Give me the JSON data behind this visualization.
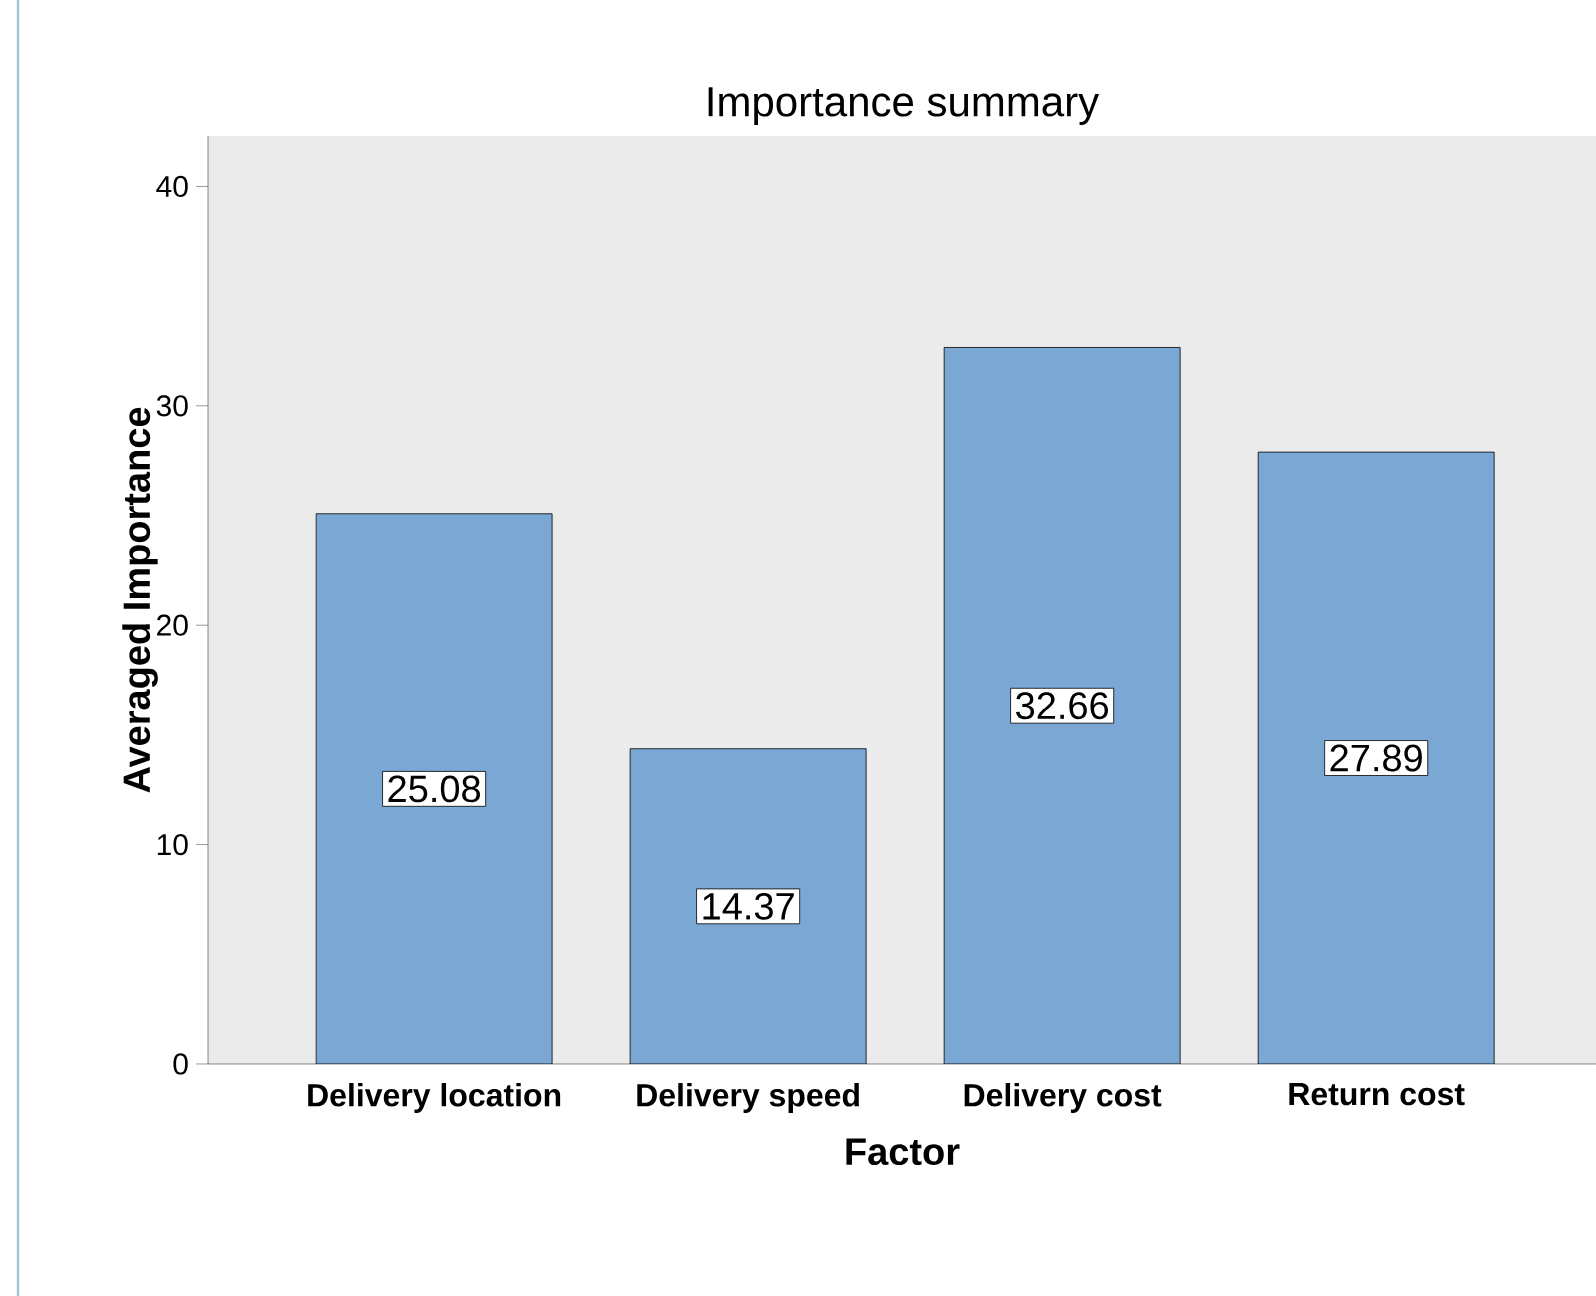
{
  "chart_data": {
    "type": "bar",
    "title": "Importance summary",
    "xlabel": "Factor",
    "ylabel": "Averaged Importance",
    "categories": [
      "Delivery location",
      "Delivery speed",
      "Delivery cost",
      "Return cost"
    ],
    "values": [
      25.08,
      14.37,
      32.66,
      27.89
    ],
    "color": "#7ba7d4",
    "ylim": [
      0,
      42.3
    ],
    "yticks": [
      0,
      10,
      20,
      30,
      40
    ],
    "data_labels": true
  }
}
